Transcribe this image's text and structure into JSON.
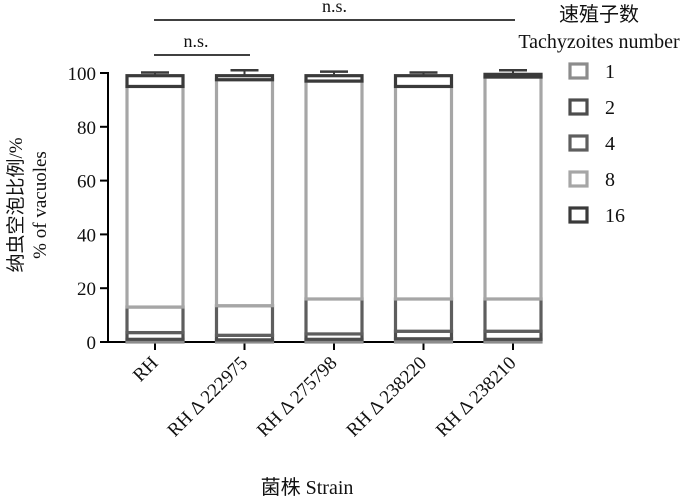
{
  "chart_data": {
    "type": "bar",
    "stacked": true,
    "categories": [
      "RH",
      "RH Δ 222975",
      "RH Δ 275798",
      "RH Δ 238220",
      "RH Δ 238210"
    ],
    "ylabel_cn": "纳虫空泡比例/%",
    "ylabel_en": "% of vacuoles",
    "xlabel": "菌株  Strain",
    "legend_title_cn": "速殖子数",
    "legend_title_en": "Tachyzoites number",
    "ylim": [
      0,
      100
    ],
    "yticks": [
      "0",
      "20",
      "40",
      "60",
      "80",
      "100"
    ],
    "legend_position": "right",
    "series": [
      {
        "name": "1",
        "color": "#8c8c8c",
        "values": [
          1.0,
          0.8,
          1.0,
          1.2,
          1.0
        ],
        "errors": [
          0.8,
          0.6,
          0.7,
          1.0,
          0.8
        ]
      },
      {
        "name": "2",
        "color": "#4d4d4d",
        "values": [
          2.5,
          1.7,
          2.0,
          2.8,
          3.0
        ],
        "errors": [
          1.2,
          1.0,
          1.2,
          1.3,
          1.5
        ]
      },
      {
        "name": "4",
        "color": "#5e5e5e",
        "values": [
          9.5,
          11.0,
          13.0,
          12.0,
          12.0
        ],
        "errors": [
          1.5,
          2.0,
          1.5,
          1.2,
          1.3
        ]
      },
      {
        "name": "8",
        "color": "#a6a6a6",
        "values": [
          82.0,
          84.0,
          81.0,
          79.0,
          82.5
        ],
        "errors": [
          1.0,
          0.9,
          0.9,
          0.9,
          0.9
        ]
      },
      {
        "name": "16",
        "color": "#3a3a3a",
        "values": [
          4.0,
          1.5,
          2.0,
          4.0,
          1.0
        ],
        "errors": [
          1.2,
          2.0,
          1.5,
          1.2,
          1.5
        ]
      }
    ],
    "annotations": [
      {
        "text": "n.s.",
        "from": 0,
        "to": 1
      },
      {
        "text": "n.s.",
        "from": 0,
        "to": 4
      }
    ]
  }
}
